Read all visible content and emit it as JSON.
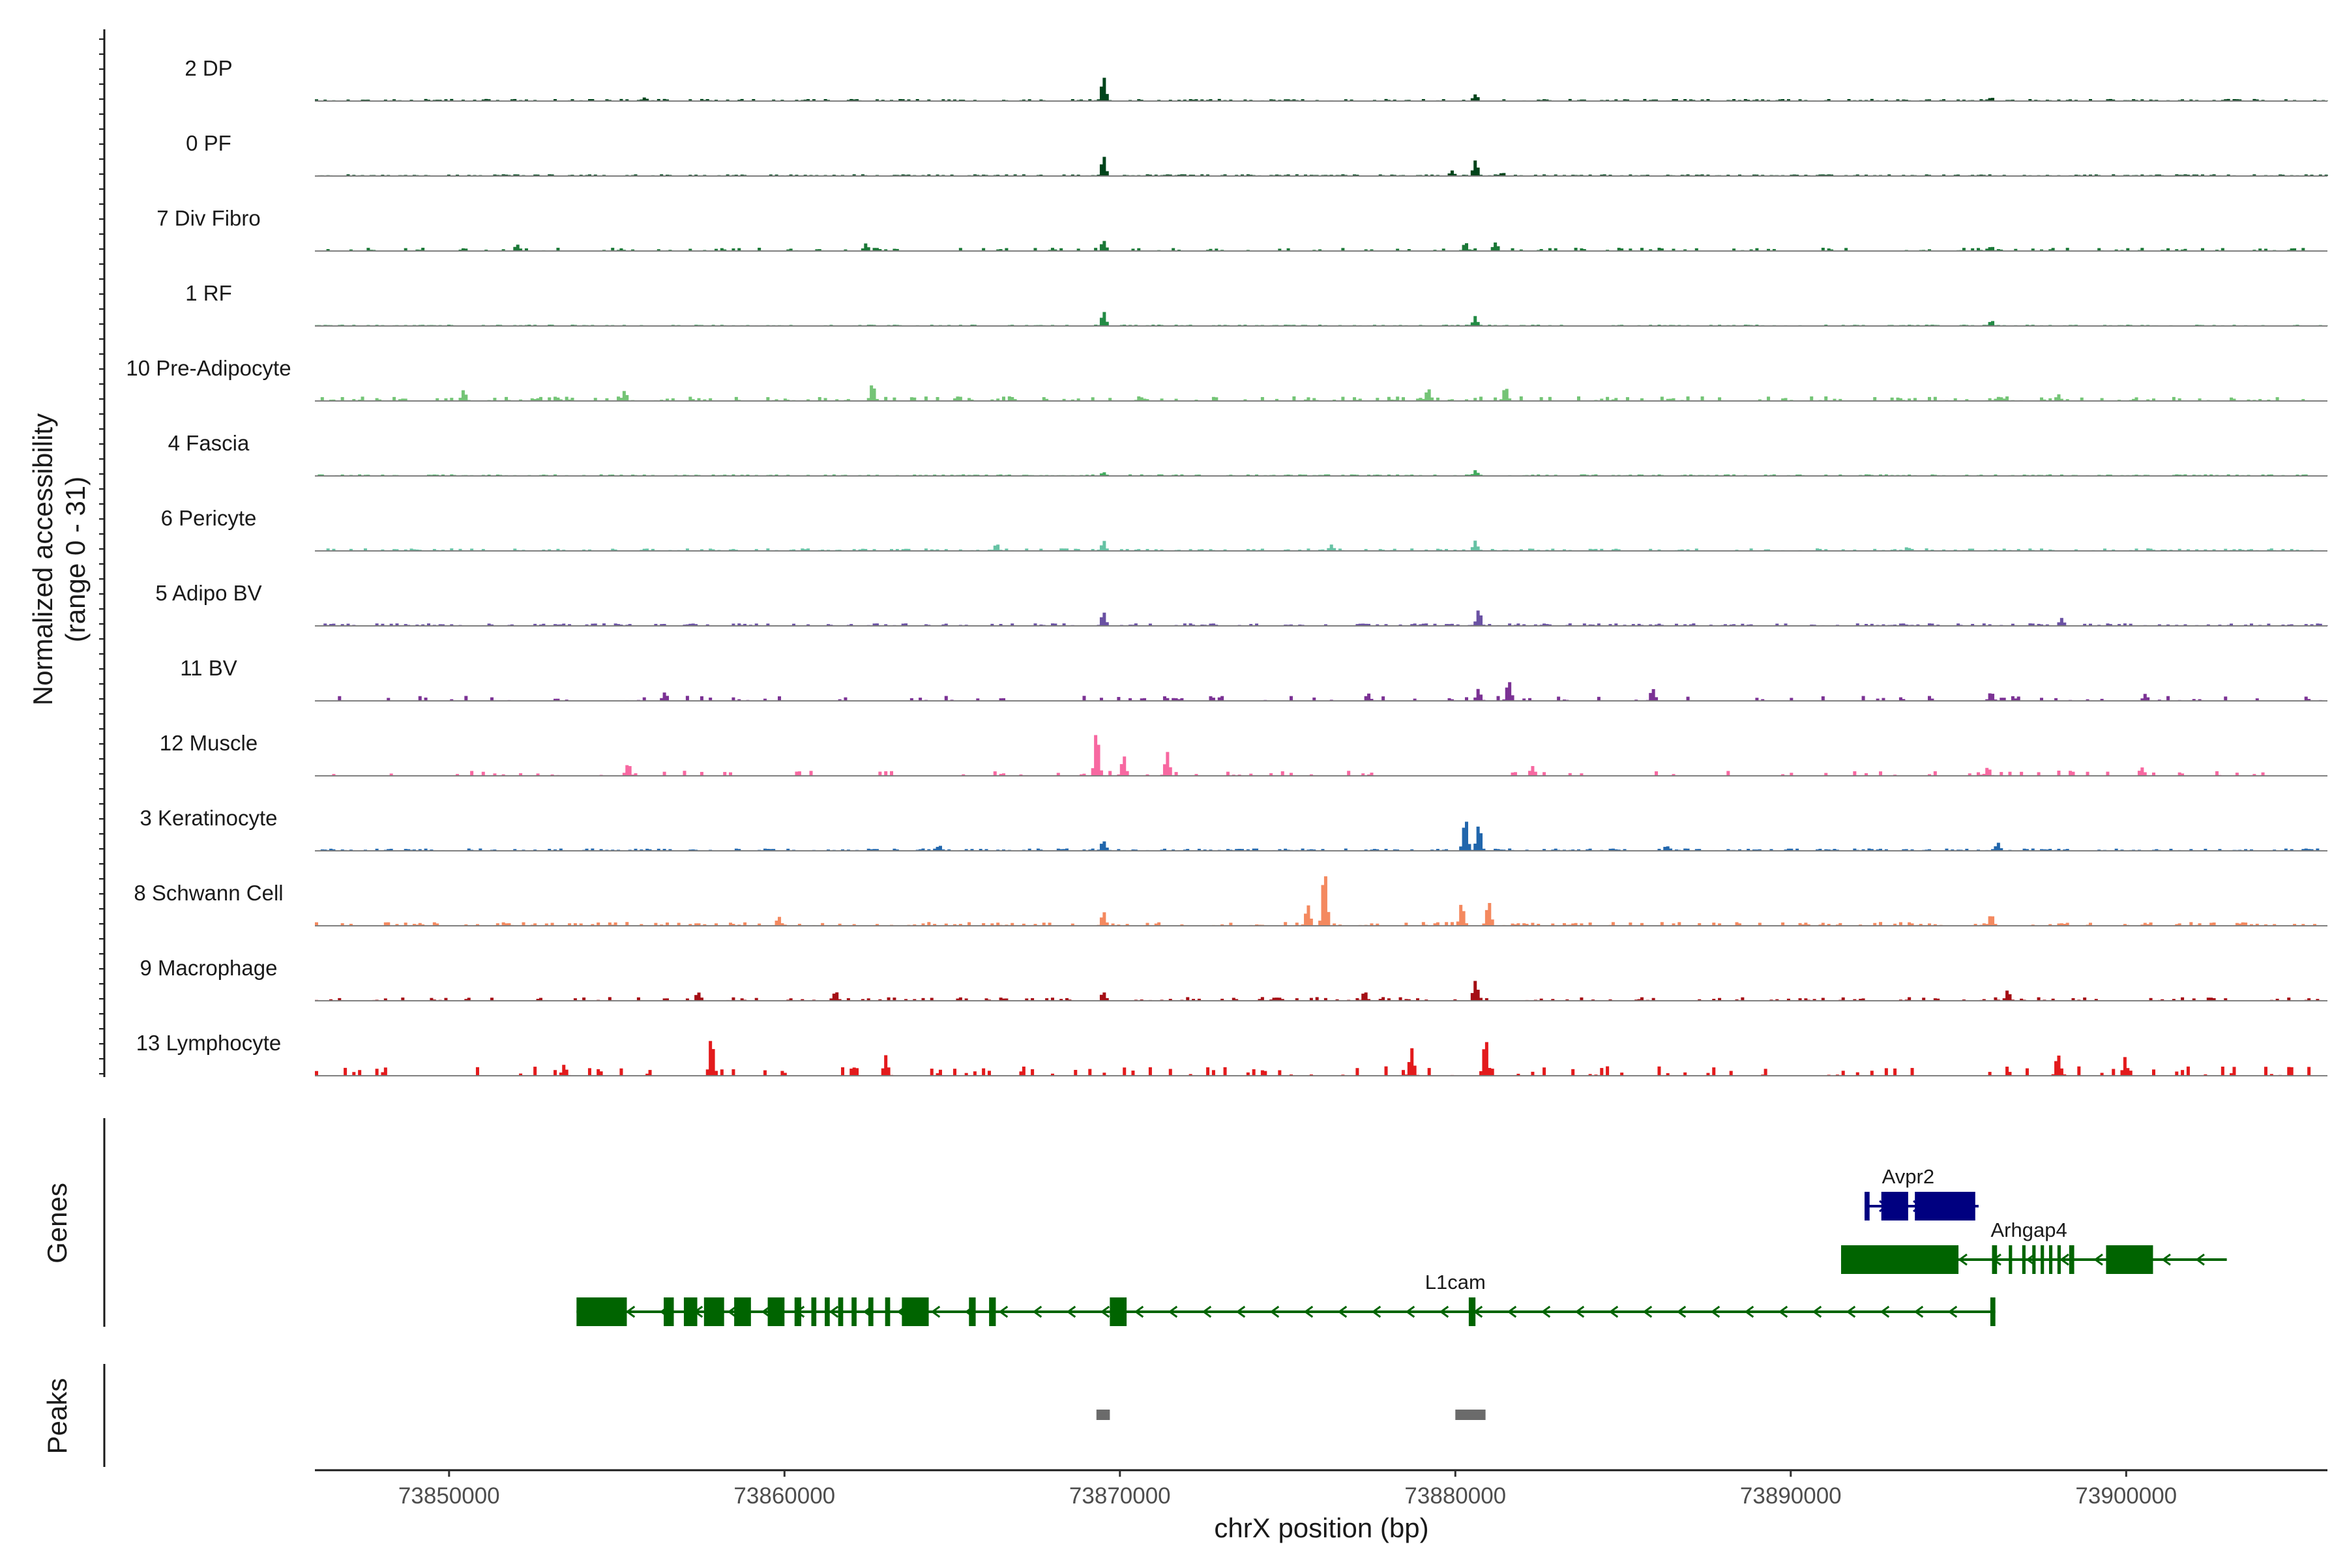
{
  "chart_data": {
    "type": "area",
    "title": "",
    "chromosome": "chrX",
    "xlabel": "chrX position (bp)",
    "ylabel": "Normalized accessibility",
    "ylabel_range": "(range 0 - 31)",
    "xlim": [
      73846000,
      73906000
    ],
    "ylim": [
      0,
      31
    ],
    "x_ticks": [
      73850000,
      73860000,
      73870000,
      73880000,
      73890000,
      73900000
    ],
    "x_tick_labels": [
      "73850000",
      "73860000",
      "73870000",
      "73880000",
      "73890000",
      "73900000"
    ],
    "panel_titles": {
      "genes": "Genes",
      "peaks": "Peaks"
    },
    "series": [
      {
        "name": "2 DP",
        "color": "#00441b",
        "noise": 1.0,
        "density": 0.55,
        "peaks": [
          [
            73869500,
            12
          ],
          [
            73880600,
            4
          ],
          [
            73855800,
            2
          ],
          [
            73896000,
            2
          ]
        ]
      },
      {
        "name": "0 PF",
        "color": "#00441b",
        "noise": 0.8,
        "density": 0.7,
        "peaks": [
          [
            73869500,
            10
          ],
          [
            73880600,
            8
          ],
          [
            73879900,
            3
          ],
          [
            73881400,
            2
          ]
        ]
      },
      {
        "name": "7 Div Fibro",
        "color": "#1b7837",
        "noise": 1.6,
        "density": 0.28,
        "peaks": [
          [
            73869500,
            6
          ],
          [
            73880300,
            5
          ],
          [
            73881200,
            5
          ],
          [
            73852000,
            4
          ],
          [
            73862400,
            4
          ],
          [
            73896000,
            3
          ]
        ]
      },
      {
        "name": "1 RF",
        "color": "#238b45",
        "noise": 0.6,
        "density": 0.8,
        "peaks": [
          [
            73869500,
            7
          ],
          [
            73880600,
            5
          ],
          [
            73896000,
            3
          ]
        ]
      },
      {
        "name": "10 Pre-Adipocyte",
        "color": "#74c476",
        "noise": 2.2,
        "density": 0.3,
        "peaks": [
          [
            73862600,
            9
          ],
          [
            73879200,
            7
          ],
          [
            73881500,
            7
          ],
          [
            73850400,
            6
          ],
          [
            73855200,
            6
          ],
          [
            73898000,
            4
          ]
        ]
      },
      {
        "name": "4 Fascia",
        "color": "#41ab5d",
        "noise": 0.7,
        "density": 0.75,
        "peaks": [
          [
            73880600,
            3
          ],
          [
            73869500,
            2
          ]
        ]
      },
      {
        "name": "6 Pericyte",
        "color": "#66c2a4",
        "noise": 1.2,
        "density": 0.45,
        "peaks": [
          [
            73869500,
            5
          ],
          [
            73880600,
            5
          ],
          [
            73876300,
            4
          ],
          [
            73866300,
            4
          ],
          [
            73893500,
            2
          ]
        ]
      },
      {
        "name": "5 Adipo BV",
        "color": "#6a51a3",
        "noise": 1.2,
        "density": 0.5,
        "peaks": [
          [
            73869500,
            7
          ],
          [
            73880700,
            8
          ],
          [
            73898100,
            4
          ]
        ]
      },
      {
        "name": "11 BV",
        "color": "#7b3294",
        "noise": 2.4,
        "density": 0.16,
        "peaks": [
          [
            73881600,
            11
          ],
          [
            73880700,
            6
          ],
          [
            73885900,
            7
          ],
          [
            73856400,
            5
          ],
          [
            73896000,
            5
          ],
          [
            73900600,
            4
          ],
          [
            73877400,
            4
          ]
        ]
      },
      {
        "name": "12 Muscle",
        "color": "#f768a1",
        "noise": 2.5,
        "density": 0.14,
        "peaks": [
          [
            73869300,
            24
          ],
          [
            73870100,
            10
          ],
          [
            73871400,
            14
          ],
          [
            73855300,
            7
          ],
          [
            73882300,
            6
          ],
          [
            73900500,
            5
          ],
          [
            73895900,
            5
          ]
        ]
      },
      {
        "name": "3 Keratinocyte",
        "color": "#2166ac",
        "noise": 1.1,
        "density": 0.55,
        "peaks": [
          [
            73880300,
            19
          ],
          [
            73880700,
            14
          ],
          [
            73869500,
            6
          ],
          [
            73864600,
            3
          ],
          [
            73886300,
            3
          ],
          [
            73896200,
            4
          ]
        ]
      },
      {
        "name": "8 Schwann Cell",
        "color": "#f4895f",
        "noise": 1.8,
        "density": 0.35,
        "peaks": [
          [
            73876100,
            31
          ],
          [
            73875600,
            12
          ],
          [
            73880200,
            12
          ],
          [
            73881000,
            14
          ],
          [
            73869500,
            7
          ],
          [
            73896000,
            6
          ],
          [
            73859800,
            5
          ]
        ]
      },
      {
        "name": "9 Macrophage",
        "color": "#a50f15",
        "noise": 1.8,
        "density": 0.3,
        "peaks": [
          [
            73880600,
            12
          ],
          [
            73896500,
            6
          ],
          [
            73861500,
            5
          ],
          [
            73869500,
            5
          ],
          [
            73857400,
            5
          ],
          [
            73877300,
            5
          ]
        ]
      },
      {
        "name": "13 Lymphocyte",
        "color": "#e31a1c",
        "noise": 4.5,
        "density": 0.16,
        "peaks": [
          [
            73857800,
            20
          ],
          [
            73880900,
            20
          ],
          [
            73878700,
            14
          ],
          [
            73898000,
            12
          ],
          [
            73900000,
            9
          ],
          [
            73863000,
            10
          ],
          [
            73853400,
            6
          ]
        ]
      }
    ],
    "genes": [
      {
        "name": "Avpr2",
        "color": "#000080",
        "start": 73892200,
        "end": 73895600,
        "strand": "+",
        "row": 0,
        "label_x": 73893500,
        "exons": [
          [
            73892200,
            73892350
          ],
          [
            73892700,
            73893500
          ],
          [
            73893700,
            73895500
          ]
        ]
      },
      {
        "name": "Arhgap4",
        "color": "#006400",
        "start": 73891500,
        "end": 73903000,
        "strand": "-",
        "row": 1,
        "label_x": 73897100,
        "exons": [
          [
            73891500,
            73895000
          ],
          [
            73896000,
            73896150
          ],
          [
            73896500,
            73896600
          ],
          [
            73896900,
            73897000
          ],
          [
            73897200,
            73897300
          ],
          [
            73897450,
            73897550
          ],
          [
            73897700,
            73897800
          ],
          [
            73897950,
            73898050
          ],
          [
            73898300,
            73898450
          ],
          [
            73899400,
            73900800
          ]
        ]
      },
      {
        "name": "L1cam",
        "color": "#006400",
        "start": 73853800,
        "end": 73896100,
        "strand": "-",
        "row": 2,
        "label_x": 73880000,
        "exons": [
          [
            73853800,
            73855300
          ],
          [
            73856400,
            73856700
          ],
          [
            73857000,
            73857400
          ],
          [
            73857600,
            73858200
          ],
          [
            73858500,
            73859000
          ],
          [
            73859500,
            73860000
          ],
          [
            73860300,
            73860500
          ],
          [
            73860800,
            73860950
          ],
          [
            73861200,
            73861350
          ],
          [
            73861600,
            73861750
          ],
          [
            73862000,
            73862150
          ],
          [
            73862500,
            73862650
          ],
          [
            73863000,
            73863150
          ],
          [
            73863500,
            73864300
          ],
          [
            73865500,
            73865700
          ],
          [
            73866100,
            73866300
          ],
          [
            73869700,
            73870200
          ],
          [
            73880400,
            73880600
          ],
          [
            73895950,
            73896100
          ]
        ]
      }
    ],
    "peaks_track": [
      [
        73869300,
        73869700
      ],
      [
        73880000,
        73880900
      ]
    ]
  }
}
